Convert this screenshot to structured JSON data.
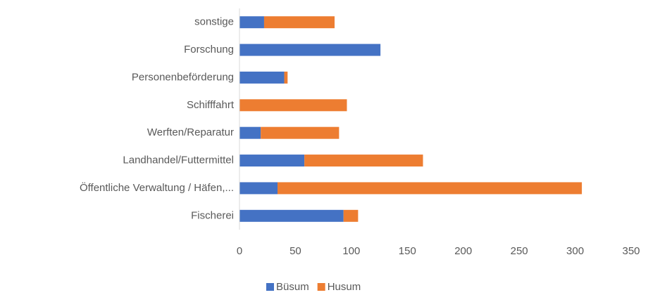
{
  "chart_data": {
    "type": "stacked-bar-horizontal",
    "categories": [
      "sonstige",
      "Forschung",
      "Personenbeförderung",
      "Schifffahrt",
      "Werften/Reparatur",
      "Landhandel/Futtermittel",
      "Öffentliche Verwaltung / Häfen,...",
      "Fischerei"
    ],
    "series": [
      {
        "name": "Büsum",
        "color": "#4472c4",
        "values": [
          22,
          126,
          40,
          0,
          19,
          58,
          34,
          93
        ]
      },
      {
        "name": "Husum",
        "color": "#ed7d31",
        "values": [
          63,
          0,
          3,
          96,
          70,
          106,
          272,
          13
        ]
      }
    ],
    "xlim": [
      0,
      350
    ],
    "xticks": [
      0,
      50,
      100,
      150,
      200,
      250,
      300,
      350
    ],
    "grid": false,
    "legend": "bottom"
  }
}
